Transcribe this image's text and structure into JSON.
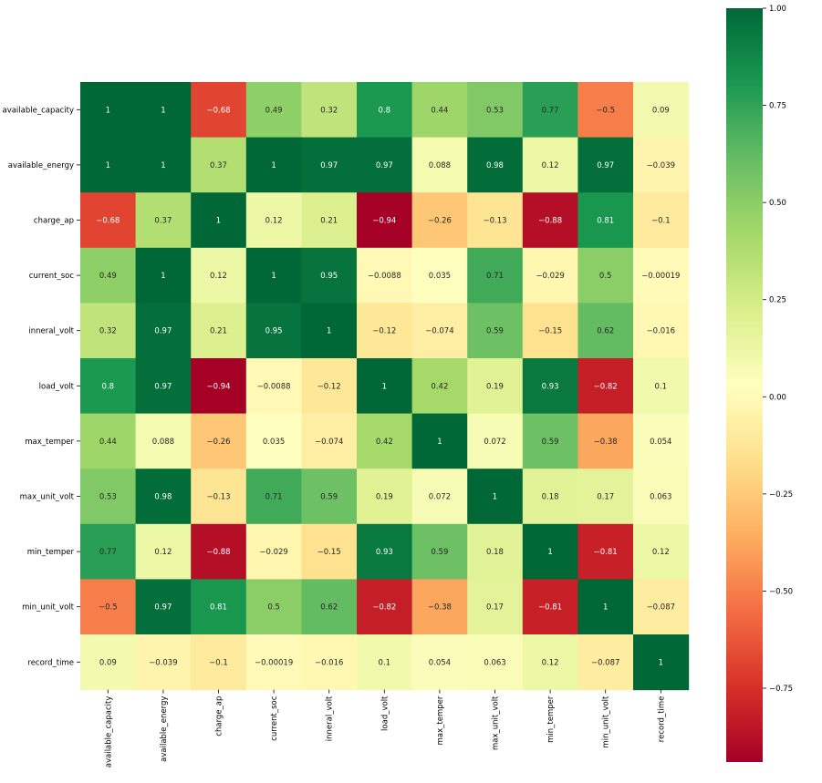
{
  "chart_data": {
    "type": "heatmap",
    "title": "",
    "xlabel": "",
    "ylabel": "",
    "labels": [
      "available_capacity",
      "available_energy",
      "charge_ap",
      "current_soc",
      "inneral_volt",
      "load_volt",
      "max_temper",
      "max_unit_volt",
      "min_temper",
      "min_unit_volt",
      "record_time"
    ],
    "matrix": [
      [
        1,
        1,
        -0.68,
        0.49,
        0.32,
        0.8,
        0.44,
        0.53,
        0.77,
        -0.5,
        0.09
      ],
      [
        1,
        1,
        0.37,
        1,
        0.97,
        0.97,
        0.088,
        0.98,
        0.12,
        0.97,
        -0.039
      ],
      [
        -0.68,
        0.37,
        1,
        0.12,
        0.21,
        -0.94,
        -0.26,
        -0.13,
        -0.88,
        0.81,
        -0.1
      ],
      [
        0.49,
        1,
        0.12,
        1,
        0.95,
        -0.0088,
        0.035,
        0.71,
        -0.029,
        0.5,
        -0.00019
      ],
      [
        0.32,
        0.97,
        0.21,
        0.95,
        1,
        -0.12,
        -0.074,
        0.59,
        -0.15,
        0.62,
        -0.016
      ],
      [
        0.8,
        0.97,
        -0.94,
        -0.0088,
        -0.12,
        1,
        0.42,
        0.19,
        0.93,
        -0.82,
        0.1
      ],
      [
        0.44,
        0.088,
        -0.26,
        0.035,
        -0.074,
        0.42,
        1,
        0.072,
        0.59,
        -0.38,
        0.054
      ],
      [
        0.53,
        0.98,
        -0.13,
        0.71,
        0.59,
        0.19,
        0.072,
        1,
        0.18,
        0.17,
        0.063
      ],
      [
        0.77,
        0.12,
        -0.88,
        -0.029,
        -0.15,
        0.93,
        0.59,
        0.18,
        1,
        -0.81,
        0.12
      ],
      [
        -0.5,
        0.97,
        0.81,
        0.5,
        0.62,
        -0.82,
        -0.38,
        0.17,
        -0.81,
        1,
        -0.087
      ],
      [
        0.09,
        -0.039,
        -0.1,
        -0.00019,
        -0.016,
        0.1,
        0.054,
        0.063,
        0.12,
        -0.087,
        1
      ]
    ],
    "colormap": "RdYlGn",
    "vmin": -0.94,
    "vmax": 1.0,
    "colorbar": {
      "ticks": [
        1.0,
        0.75,
        0.5,
        0.25,
        0.0,
        -0.25,
        -0.5,
        -0.75
      ],
      "tick_labels": [
        "1.00",
        "0.75",
        "0.50",
        "0.25",
        "0.00",
        "−0.25",
        "−0.50",
        "−0.75"
      ],
      "placement": "right"
    },
    "grid": false,
    "annotations": true
  }
}
